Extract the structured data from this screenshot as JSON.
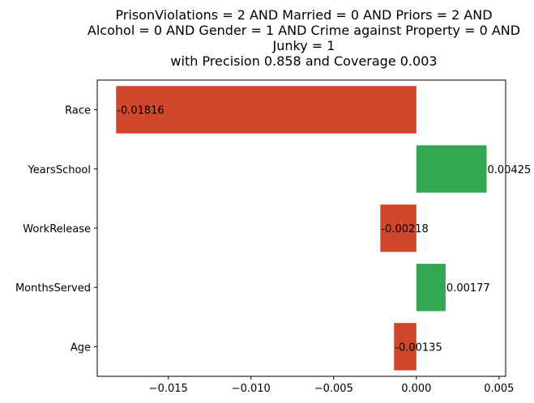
{
  "title_lines": [
    "PrisonViolations = 2 AND Married = 0 AND Priors = 2 AND",
    "Alcohol = 0 AND Gender = 1 AND Crime against Property = 0 AND",
    "Junky = 1",
    "with Precision 0.858 and Coverage 0.003"
  ],
  "chart_data": {
    "type": "bar",
    "orientation": "horizontal",
    "title": "PrisonViolations = 2 AND Married = 0 AND Priors = 2 AND Alcohol = 0 AND Gender = 1 AND Crime against Property = 0 AND Junky = 1 with Precision 0.858 and Coverage 0.003",
    "categories": [
      "Race",
      "YearsSchool",
      "WorkRelease",
      "MonthsServed",
      "Age"
    ],
    "values": [
      -0.01816,
      0.00425,
      -0.00218,
      0.00177,
      -0.00135
    ],
    "data_labels": [
      "-0.01816",
      "0.00425",
      "-0.00218",
      "0.00177",
      "-0.00135"
    ],
    "xlim": [
      -0.0193,
      0.0054
    ],
    "xticks": [
      -0.015,
      -0.01,
      -0.005,
      0.0,
      0.005
    ],
    "xtick_labels": [
      "−0.015",
      "−0.010",
      "−0.005",
      "0.000",
      "0.005"
    ],
    "xlabel": "",
    "ylabel": "",
    "grid": false,
    "colors": {
      "positive": "#33a852",
      "negative": "#d0472b"
    }
  }
}
